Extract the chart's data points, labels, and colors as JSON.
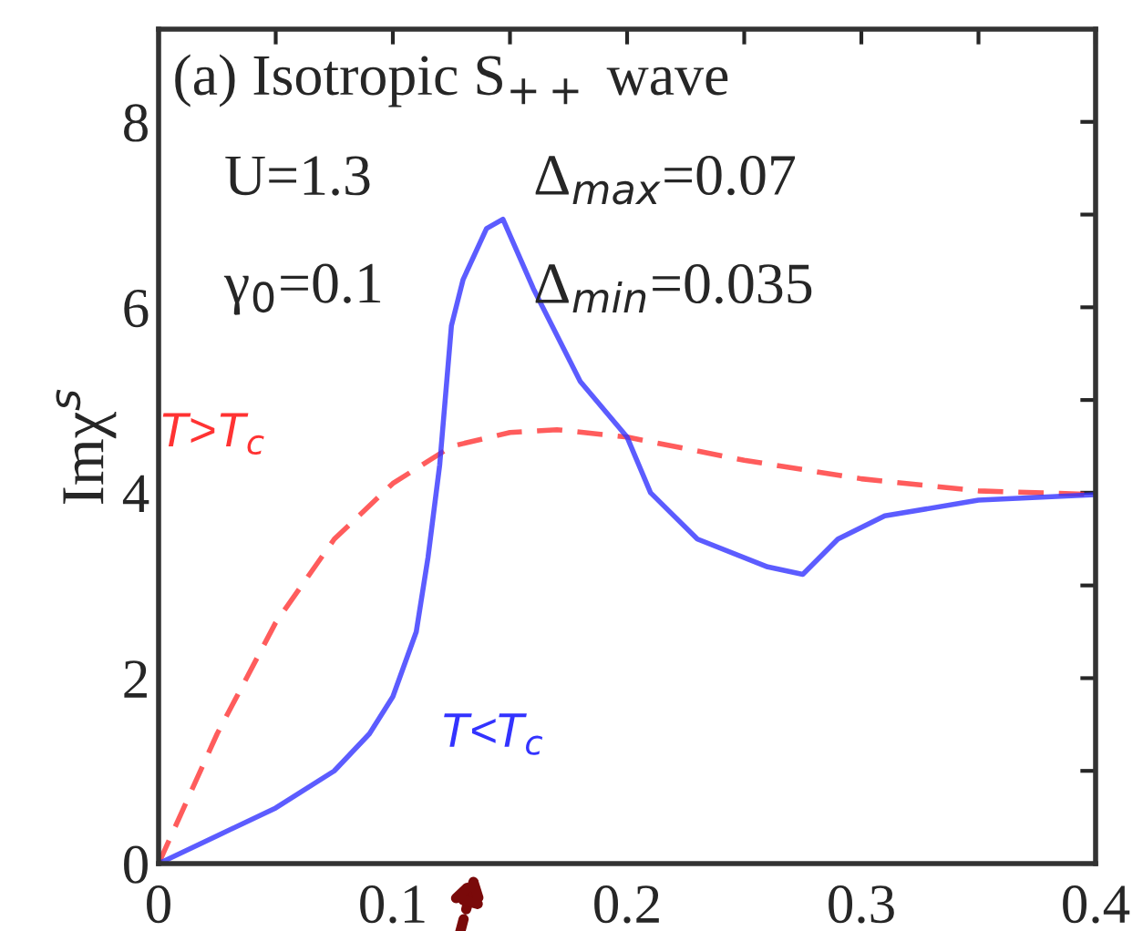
{
  "chart_data": {
    "type": "line",
    "ylabel": "Imχ$^{s}$",
    "xlim": [
      0,
      0.4
    ],
    "ylim": [
      0,
      9
    ],
    "xticks": [
      0,
      {
        "value": 0.05,
        "label": null
      },
      0.1,
      {
        "value": 0.15,
        "label": null
      },
      0.2,
      {
        "value": 0.25,
        "label": null
      },
      0.3,
      {
        "value": 0.35,
        "label": null
      },
      0.4
    ],
    "yticks": [
      0,
      {
        "value": 1,
        "label": null
      },
      2,
      {
        "value": 3,
        "label": null
      },
      4,
      {
        "value": 5,
        "label": null
      },
      6,
      {
        "value": 7,
        "label": null
      },
      8
    ],
    "grid": false,
    "legend": false,
    "annotations": [
      "(a) Isotropic S$_{++}$ wave",
      "U=1.3",
      "γ$_{0}$=0.1",
      "Δ$_{max}$=0.07",
      "Δ$_{min}$=0.035"
    ],
    "series": [
      {
        "name": "T>T$_{c}$",
        "color": "#ff3333",
        "line_style": "dashed",
        "x": [
          0,
          0.025,
          0.05,
          0.075,
          0.1,
          0.125,
          0.15,
          0.17,
          0.2,
          0.25,
          0.3,
          0.35,
          0.4
        ],
        "values": [
          0,
          1.4,
          2.6,
          3.5,
          4.1,
          4.5,
          4.65,
          4.68,
          4.6,
          4.35,
          4.15,
          4.02,
          3.98
        ]
      },
      {
        "name": "T<T$_{c}$",
        "color": "#3333ff",
        "line_style": "solid",
        "x": [
          0,
          0.025,
          0.05,
          0.075,
          0.09,
          0.1,
          0.11,
          0.115,
          0.12,
          0.125,
          0.13,
          0.14,
          0.147,
          0.16,
          0.18,
          0.2,
          0.21,
          0.23,
          0.26,
          0.275,
          0.29,
          0.31,
          0.35,
          0.4
        ],
        "values": [
          0,
          0.3,
          0.6,
          1.0,
          1.4,
          1.8,
          2.5,
          3.3,
          4.3,
          5.8,
          6.3,
          6.85,
          6.95,
          6.2,
          5.2,
          4.6,
          4.0,
          3.5,
          3.2,
          3.12,
          3.5,
          3.75,
          3.92,
          3.98
        ]
      }
    ]
  }
}
